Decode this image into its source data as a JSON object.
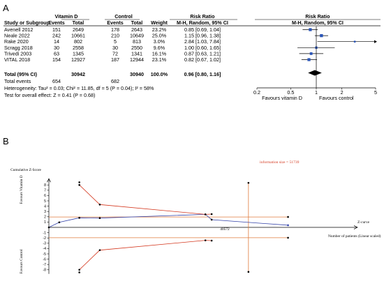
{
  "panel_a_label": "A",
  "panel_b_label": "B",
  "chart_data": [
    {
      "type": "forest",
      "group_headers": {
        "treatment": "Vitamin D",
        "control": "Control",
        "risk_ratio": "Risk Ratio",
        "risk_ratio_plot": "Risk Ratio"
      },
      "columns": {
        "study": "Study or Subgroup",
        "events_t": "Events",
        "total_t": "Total",
        "events_c": "Events",
        "total_c": "Total",
        "weight": "Weight",
        "ci": "M-H, Random, 95% CI",
        "ci_plot": "M-H, Random, 95% CI"
      },
      "studies": [
        {
          "name": "Avenell 2012",
          "events_t": "151",
          "total_t": "2649",
          "events_c": "178",
          "total_c": "2643",
          "weight": "23.2%",
          "ci_text": "0.85 [0.69, 1.04]",
          "rr": 0.85,
          "lo": 0.69,
          "hi": 1.04
        },
        {
          "name": "Neale 2022",
          "events_t": "242",
          "total_t": "10661",
          "events_c": "210",
          "total_c": "10649",
          "weight": "25.0%",
          "ci_text": "1.15 [0.96, 1.38]",
          "rr": 1.15,
          "lo": 0.96,
          "hi": 1.38
        },
        {
          "name": "Rake 2020",
          "events_t": "14",
          "total_t": "802",
          "events_c": "5",
          "total_c": "813",
          "weight": "3.0%",
          "ci_text": "2.84 [1.03, 7.84]",
          "rr": 2.84,
          "lo": 1.03,
          "hi": 7.84
        },
        {
          "name": "Scragg 2018",
          "events_t": "30",
          "total_t": "2558",
          "events_c": "30",
          "total_c": "2550",
          "weight": "9.6%",
          "ci_text": "1.00 [0.60, 1.65]",
          "rr": 1.0,
          "lo": 0.6,
          "hi": 1.65
        },
        {
          "name": "Trivedi 2003",
          "events_t": "63",
          "total_t": "1345",
          "events_c": "72",
          "total_c": "1341",
          "weight": "16.1%",
          "ci_text": "0.87 [0.63, 1.21]",
          "rr": 0.87,
          "lo": 0.63,
          "hi": 1.21
        },
        {
          "name": "VITAL 2018",
          "events_t": "154",
          "total_t": "12927",
          "events_c": "187",
          "total_c": "12944",
          "weight": "23.1%",
          "ci_text": "0.82 [0.67, 1.02]",
          "rr": 0.82,
          "lo": 0.67,
          "hi": 1.02
        }
      ],
      "total": {
        "name": "Total (95% CI)",
        "total_t": "30942",
        "total_c": "30940",
        "weight": "100.0%",
        "ci_text": "0.96 [0.80, 1.16]",
        "rr": 0.96,
        "lo": 0.8,
        "hi": 1.16
      },
      "total_events": {
        "name": "Total events",
        "events_t": "654",
        "events_c": "682"
      },
      "heterogeneity": "Heterogeneity: Tau² = 0.03; Chi² = 11.85, df = 5 (P = 0.04); I² = 58%",
      "overall_effect": "Test for overall effect: Z = 0.41 (P = 0.68)",
      "x_scale": "log",
      "x_ticks": [
        0.2,
        0.5,
        1,
        2,
        5
      ],
      "x_tick_labels": [
        "0.2",
        "0.5",
        "1",
        "2",
        "5"
      ],
      "xlim": [
        0.2,
        5
      ],
      "favours_left": "Favours vitamin D",
      "favours_right": "Favours control"
    },
    {
      "type": "line",
      "title": "",
      "ylabel": "Cumulative Z-Score",
      "xlabel": "Number of patients (Linear scaled)",
      "ylim": [
        -8,
        8
      ],
      "yticks": [
        -8,
        -7,
        -6,
        -5,
        -4,
        -3,
        -2,
        -1,
        1,
        2,
        3,
        4,
        5,
        6,
        7,
        8
      ],
      "ytick_labels": [
        "-8",
        "-7",
        "-6",
        "-5",
        "-4",
        "-3",
        "-2",
        "-1",
        "1",
        "2",
        "3",
        "4",
        "5",
        "6",
        "7",
        "8"
      ],
      "xlim": [
        0,
        80000
      ],
      "favours_top": "Favours Vitamin D",
      "favours_bottom": "Favours Control",
      "information_size_label": "information size = 51739",
      "information_size": 51739,
      "marked_x_label": "40572",
      "marked_x": 40572,
      "conventional_boundary": 1.96,
      "conventional_boundary_end": 62000,
      "series": [
        {
          "name": "Z-curve",
          "x": [
            0,
            2690,
            7900,
            13200,
            40572,
            42200,
            62000
          ],
          "y": [
            0,
            0.95,
            1.8,
            1.75,
            2.45,
            1.45,
            0.4
          ]
        },
        {
          "x": [
            7900,
            13200,
            40572,
            42200
          ],
          "y": [
            8.0,
            4.3,
            2.45,
            2.5
          ]
        },
        {
          "x": [
            7900,
            13200,
            40572,
            42200
          ],
          "y": [
            -8.0,
            -4.3,
            -2.45,
            -2.5
          ]
        }
      ],
      "extra_points": [
        {
          "x": 7900,
          "y": 8.5
        },
        {
          "x": 7900,
          "y": -8.5
        }
      ]
    }
  ]
}
